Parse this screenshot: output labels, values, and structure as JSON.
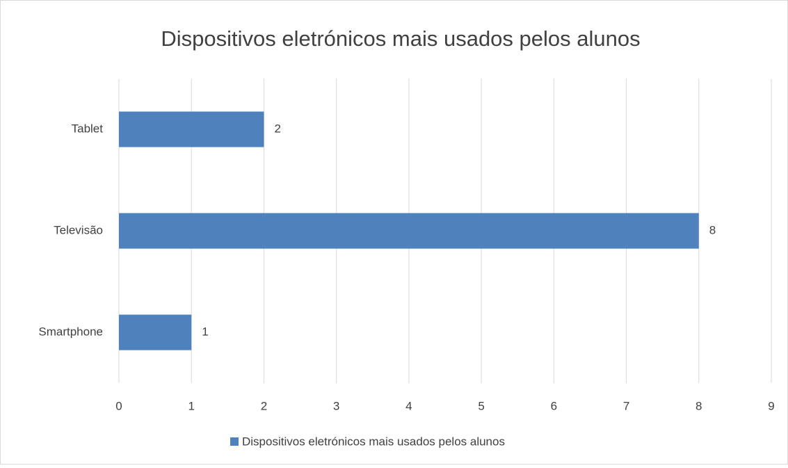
{
  "chart_data": {
    "type": "bar",
    "orientation": "horizontal",
    "title": "Dispositivos eletrónicos mais usados pelos alunos",
    "categories": [
      "Smartphone",
      "Televisão",
      "Tablet"
    ],
    "series": [
      {
        "name": "Dispositivos eletrónicos mais usados pelos alunos",
        "color": "#4f81bd",
        "values": [
          1,
          8,
          2
        ]
      }
    ],
    "xlim": [
      0,
      9
    ],
    "xticks": [
      0,
      1,
      2,
      3,
      4,
      5,
      6,
      7,
      8,
      9
    ],
    "grid": true,
    "legend": "bottom"
  }
}
